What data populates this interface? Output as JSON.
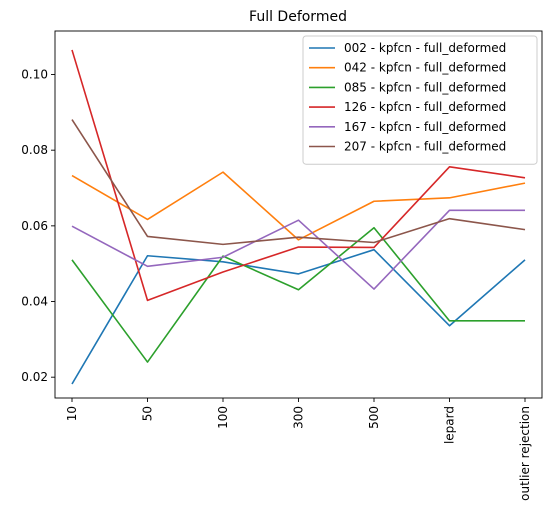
{
  "chart_data": {
    "type": "line",
    "title": "Full Deformed",
    "xlabel": "",
    "ylabel": "",
    "categories": [
      "10",
      "50",
      "100",
      "300",
      "500",
      "lepard",
      "outlier rejection"
    ],
    "yticks": [
      "0.02",
      "0.04",
      "0.06",
      "0.08",
      "0.10"
    ],
    "ylim": [
      0.0145,
      0.1115
    ],
    "grid": false,
    "legend_position": "top-right",
    "series": [
      {
        "name": "002 - kpfcn - full_deformed",
        "color": "#1f77b4",
        "values": [
          0.0182,
          0.0521,
          0.0505,
          0.0473,
          0.0537,
          0.0336,
          0.051
        ]
      },
      {
        "name": "042 - kpfcn - full_deformed",
        "color": "#ff7f0e",
        "values": [
          0.0733,
          0.0617,
          0.0742,
          0.0563,
          0.0665,
          0.0674,
          0.0713
        ]
      },
      {
        "name": "085 - kpfcn - full_deformed",
        "color": "#2ca02c",
        "values": [
          0.051,
          0.024,
          0.052,
          0.0431,
          0.0595,
          0.0349,
          0.0349
        ]
      },
      {
        "name": "126 - kpfcn - full_deformed",
        "color": "#d62728",
        "values": [
          0.1065,
          0.0403,
          0.0478,
          0.0544,
          0.0543,
          0.0756,
          0.0727
        ]
      },
      {
        "name": "167 - kpfcn - full_deformed",
        "color": "#9467bd",
        "values": [
          0.0599,
          0.0493,
          0.0517,
          0.0615,
          0.0433,
          0.0641,
          0.0641
        ]
      },
      {
        "name": "207 - kpfcn - full_deformed",
        "color": "#8c564b",
        "values": [
          0.0881,
          0.0572,
          0.0551,
          0.057,
          0.0556,
          0.0619,
          0.059
        ]
      }
    ]
  }
}
